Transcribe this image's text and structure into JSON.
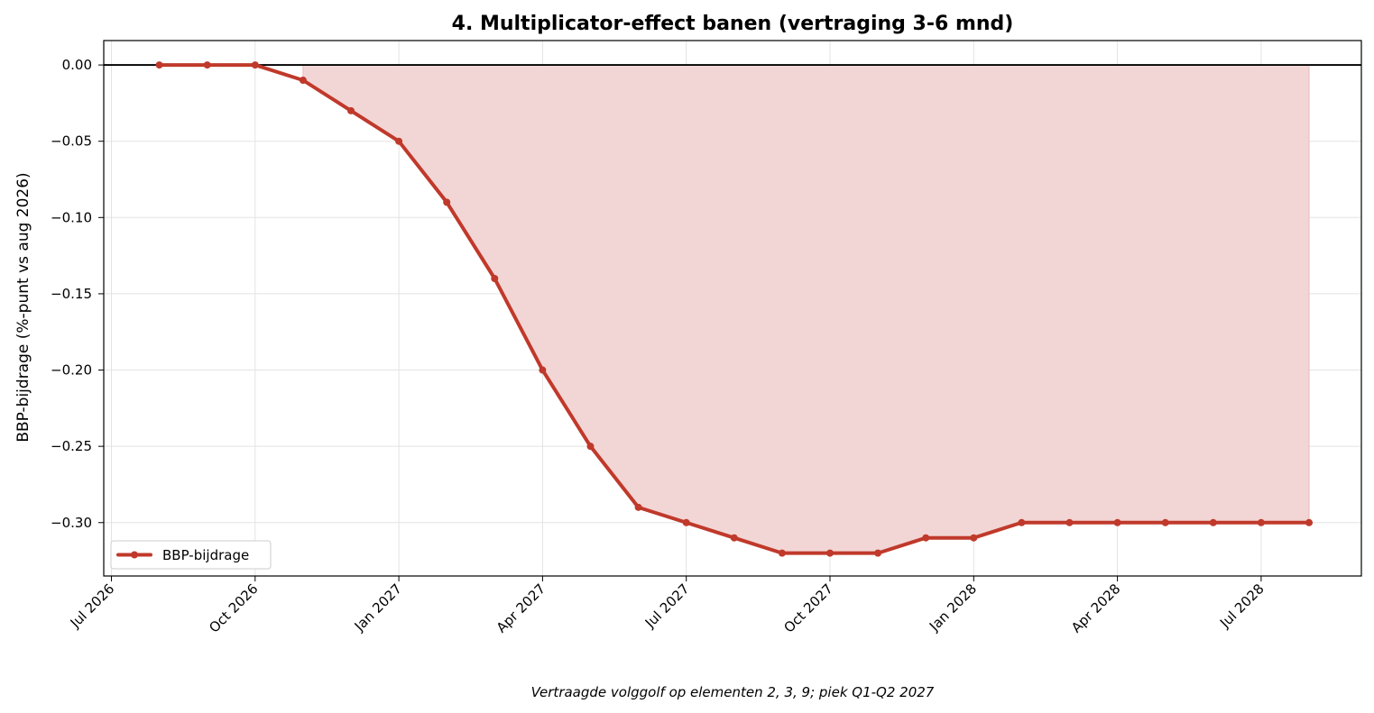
{
  "chart_data": {
    "type": "line",
    "title": "4. Multiplicator-effect banen (vertraging 3-6 mnd)",
    "xlabel": "",
    "ylabel": "BBP-bijdrage (%-punt vs aug 2026)",
    "caption": "Vertraagde volggolf op elementen 2, 3, 9; piek Q1-Q2 2027",
    "x_ticks": [
      "Jul 2026",
      "Oct 2026",
      "Jan 2027",
      "Apr 2027",
      "Jul 2027",
      "Oct 2027",
      "Jan 2028",
      "Apr 2028",
      "Jul 2028"
    ],
    "y_ticks": [
      "0.00",
      "−0.05",
      "−0.10",
      "−0.15",
      "−0.20",
      "−0.25",
      "−0.30"
    ],
    "ylim": [
      -0.335,
      0.016
    ],
    "grid": true,
    "legend_position": "lower-left",
    "fill_under_from": "2026-11",
    "colors": {
      "line": "#c0392b",
      "fill": "#f2d6d5",
      "zero_line": "#000000"
    },
    "series": [
      {
        "name": "BBP-bijdrage",
        "x": [
          "2026-08",
          "2026-09",
          "2026-10",
          "2026-11",
          "2026-12",
          "2027-01",
          "2027-02",
          "2027-03",
          "2027-04",
          "2027-05",
          "2027-06",
          "2027-07",
          "2027-08",
          "2027-09",
          "2027-10",
          "2027-11",
          "2027-12",
          "2028-01",
          "2028-02",
          "2028-03",
          "2028-04",
          "2028-05",
          "2028-06",
          "2028-07",
          "2028-08"
        ],
        "values": [
          0.0,
          0.0,
          0.0,
          -0.01,
          -0.03,
          -0.05,
          -0.09,
          -0.14,
          -0.2,
          -0.25,
          -0.29,
          -0.3,
          -0.31,
          -0.32,
          -0.32,
          -0.32,
          -0.31,
          -0.31,
          -0.3,
          -0.3,
          -0.3,
          -0.3,
          -0.3,
          -0.3,
          -0.3
        ]
      }
    ]
  }
}
